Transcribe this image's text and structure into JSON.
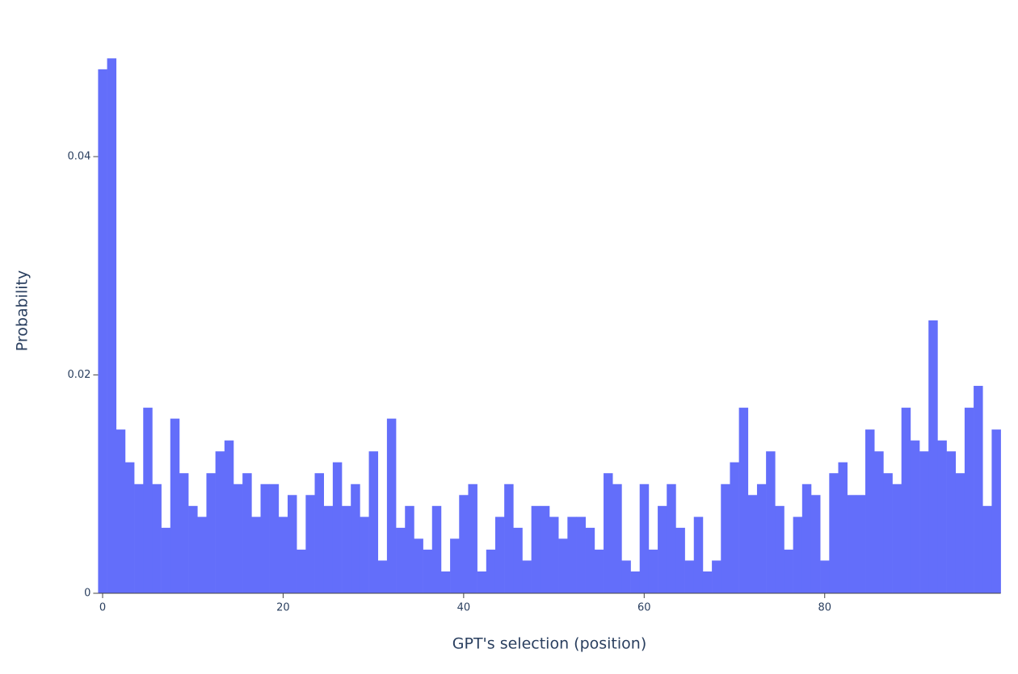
{
  "chart_data": {
    "type": "histogram",
    "x_label": "GPT's selection (position)",
    "y_label": "Probability",
    "color": "#636efa",
    "bins": [
      -0.5,
      0.5,
      1.5,
      2.5,
      3.5,
      4.5,
      5.5,
      6.5,
      7.5,
      8.5,
      9.5,
      10.5,
      11.5,
      12.5,
      13.5,
      14.5,
      15.5,
      16.5,
      17.5,
      18.5,
      19.5,
      20.5,
      21.5,
      22.5,
      23.5,
      24.5,
      25.5,
      26.5,
      27.5,
      28.5,
      29.5,
      30.5,
      31.5,
      32.5,
      33.5,
      34.5,
      35.5,
      36.5,
      37.5,
      38.5,
      39.5,
      40.5,
      41.5,
      42.5,
      43.5,
      44.5,
      45.5,
      46.5,
      47.5,
      48.5,
      49.5,
      50.5,
      51.5,
      52.5,
      53.5,
      54.5,
      55.5,
      56.5,
      57.5,
      58.5,
      59.5,
      60.5,
      61.5,
      62.5,
      63.5,
      64.5,
      65.5,
      66.5,
      67.5,
      68.5,
      69.5,
      70.5,
      71.5,
      72.5,
      73.5,
      74.5,
      75.5,
      76.5,
      77.5,
      78.5,
      79.5,
      80.5,
      81.5,
      82.5,
      83.5,
      84.5,
      85.5,
      86.5,
      87.5,
      88.5,
      89.5,
      90.5,
      91.5,
      92.5,
      93.5,
      94.5,
      95.5,
      96.5,
      97.5,
      98.5,
      99.5
    ],
    "values": [
      0.048,
      0.049,
      0.015,
      0.012,
      0.01,
      0.017,
      0.01,
      0.006,
      0.016,
      0.011,
      0.008,
      0.007,
      0.011,
      0.013,
      0.014,
      0.01,
      0.011,
      0.007,
      0.01,
      0.01,
      0.007,
      0.009,
      0.004,
      0.009,
      0.011,
      0.008,
      0.012,
      0.008,
      0.01,
      0.007,
      0.013,
      0.003,
      0.016,
      0.006,
      0.008,
      0.005,
      0.004,
      0.008,
      0.002,
      0.005,
      0.009,
      0.01,
      0.002,
      0.004,
      0.007,
      0.01,
      0.006,
      0.003,
      0.008,
      0.008,
      0.007,
      0.005,
      0.007,
      0.007,
      0.006,
      0.004,
      0.011,
      0.01,
      0.003,
      0.002,
      0.01,
      0.004,
      0.008,
      0.01,
      0.006,
      0.003,
      0.007,
      0.002,
      0.003,
      0.01,
      0.012,
      0.017,
      0.009,
      0.01,
      0.013,
      0.008,
      0.004,
      0.007,
      0.01,
      0.009,
      0.003,
      0.011,
      0.012,
      0.009,
      0.009,
      0.015,
      0.013,
      0.011,
      0.01,
      0.017,
      0.014,
      0.013,
      0.025,
      0.014,
      0.013,
      0.011,
      0.017,
      0.019,
      0.008,
      0.015
    ],
    "xlim": [
      -0.5,
      99.5
    ],
    "xticks": [
      0,
      20,
      40,
      60,
      80
    ],
    "ylim": [
      0,
      0.049
    ],
    "yticks": [
      0,
      0.02,
      0.04
    ]
  }
}
